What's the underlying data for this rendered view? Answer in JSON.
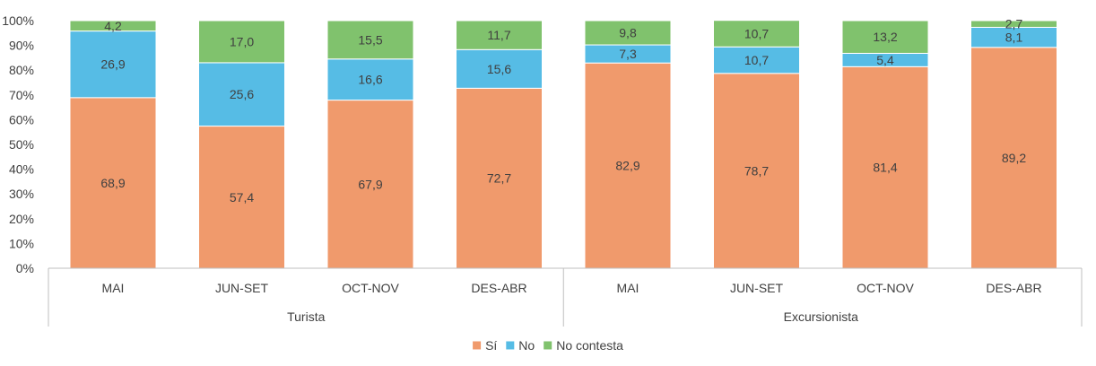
{
  "chart_data": {
    "type": "bar",
    "stacked": true,
    "percent": true,
    "groups": [
      {
        "name": "Turista",
        "categories": [
          "MAI",
          "JUN-SET",
          "OCT-NOV",
          "DES-ABR"
        ]
      },
      {
        "name": "Excursionista",
        "categories": [
          "MAI",
          "JUN-SET",
          "OCT-NOV",
          "DES-ABR"
        ]
      }
    ],
    "series": [
      {
        "name": "Sí",
        "color": "#F09A6C",
        "values": [
          68.9,
          57.4,
          67.9,
          72.7,
          82.9,
          78.7,
          81.4,
          89.2
        ],
        "labels": [
          "68,9",
          "57,4",
          "67,9",
          "72,7",
          "82,9",
          "78,7",
          "81,4",
          "89,2"
        ]
      },
      {
        "name": "No",
        "color": "#56BCE5",
        "values": [
          26.9,
          25.6,
          16.6,
          15.6,
          7.3,
          10.7,
          5.4,
          8.1
        ],
        "labels": [
          "26,9",
          "25,6",
          "16,6",
          "15,6",
          "7,3",
          "10,7",
          "5,4",
          "8,1"
        ]
      },
      {
        "name": "No contesta",
        "color": "#80C26D",
        "values": [
          4.2,
          17.0,
          15.5,
          11.7,
          9.8,
          10.7,
          13.2,
          2.7
        ],
        "labels": [
          "4,2",
          "17,0",
          "15,5",
          "11,7",
          "9,8",
          "10,7",
          "13,2",
          "2,7"
        ]
      }
    ],
    "yticks": [
      "0%",
      "10%",
      "20%",
      "30%",
      "40%",
      "50%",
      "60%",
      "70%",
      "80%",
      "90%",
      "100%"
    ],
    "ylim": [
      0,
      100
    ],
    "grid": false,
    "legend_position": "bottom"
  }
}
